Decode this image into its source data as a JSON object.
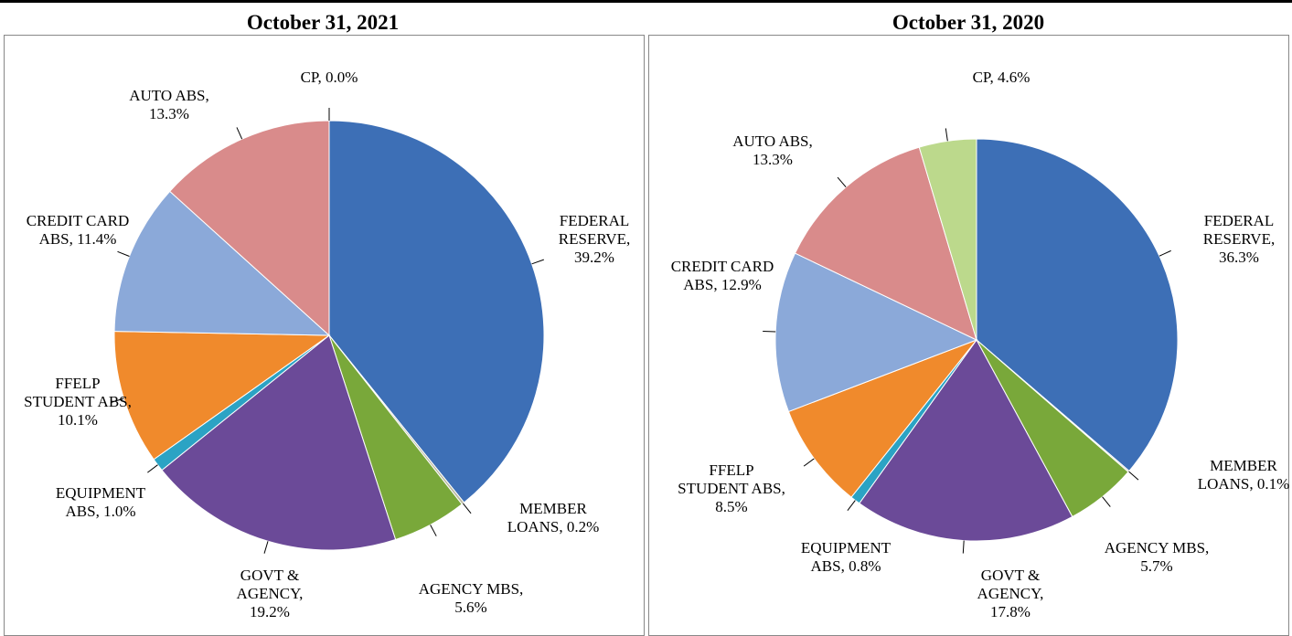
{
  "chart_data": [
    {
      "type": "pie",
      "title": "October 31, 2021",
      "categories": [
        "FEDERAL RESERVE,",
        "MEMBER LOANS,",
        "AGENCY MBS,",
        "GOVT & AGENCY,",
        "EQUIPMENT ABS,",
        "FFELP STUDENT ABS,",
        "CREDIT CARD ABS,",
        "AUTO ABS,",
        "CP,"
      ],
      "values": [
        39.2,
        0.2,
        5.6,
        19.2,
        1.0,
        10.1,
        11.4,
        13.3,
        0.0
      ],
      "value_labels": [
        "39.2%",
        "0.2%",
        "5.6%",
        "19.2%",
        "1.0%",
        "10.1%",
        "11.4%",
        "13.3%",
        "0.0%"
      ],
      "colors": [
        "#3d6fb6",
        "#b9b9a0",
        "#79a83a",
        "#6b4a98",
        "#2ba3c4",
        "#f08a2c",
        "#8ba9d9",
        "#d98b8b",
        "#bcd98c"
      ]
    },
    {
      "type": "pie",
      "title": "October 31, 2020",
      "categories": [
        "FEDERAL RESERVE,",
        "MEMBER LOANS,",
        "AGENCY MBS,",
        "GOVT & AGENCY,",
        "EQUIPMENT ABS,",
        "FFELP STUDENT ABS,",
        "CREDIT CARD ABS,",
        "AUTO ABS,",
        "CP,"
      ],
      "values": [
        36.3,
        0.1,
        5.7,
        17.8,
        0.8,
        8.5,
        12.9,
        13.3,
        4.6
      ],
      "value_labels": [
        "36.3%",
        "0.1%",
        "5.7%",
        "17.8%",
        "0.8%",
        "8.5%",
        "12.9%",
        "13.3%",
        "4.6%"
      ],
      "colors": [
        "#3d6fb6",
        "#b9b9a0",
        "#79a83a",
        "#6b4a98",
        "#2ba3c4",
        "#f08a2c",
        "#8ba9d9",
        "#d98b8b",
        "#bcd98c"
      ]
    }
  ]
}
